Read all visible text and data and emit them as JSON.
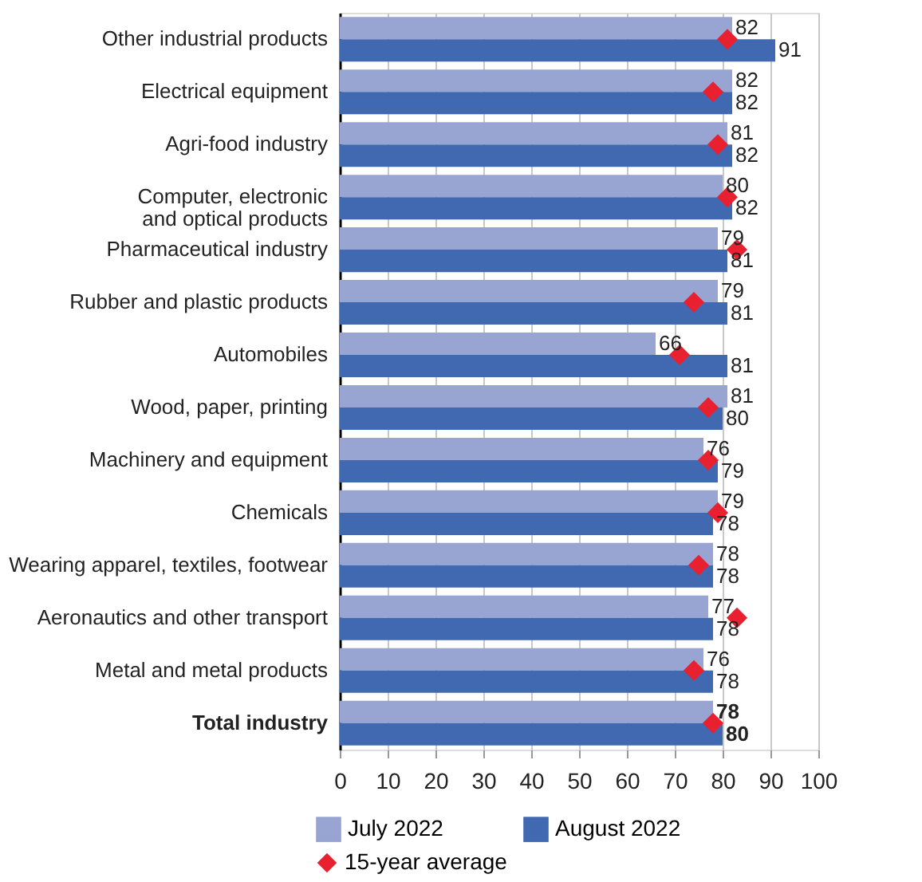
{
  "chart_data": {
    "type": "bar",
    "orientation": "horizontal",
    "categories": [
      "Other industrial products",
      "Electrical equipment",
      "Agri-food industry",
      "Computer, electronic and optical products",
      "Pharmaceutical industry",
      "Rubber and plastic products",
      "Automobiles",
      "Wood, paper, printing",
      "Machinery and equipment",
      "Chemicals",
      "Wearing apparel, textiles, footwear",
      "Aeronautics and other transport",
      "Metal and metal products",
      "Total industry"
    ],
    "series": [
      {
        "name": "July 2022",
        "color": "#98a4d2",
        "values": [
          82,
          82,
          81,
          80,
          79,
          79,
          66,
          81,
          76,
          79,
          78,
          77,
          76,
          78
        ],
        "value_labels": [
          "82",
          "82",
          "81",
          "80",
          "79",
          "79",
          "66",
          "81",
          "76",
          "79",
          "78",
          "77",
          "76",
          "78"
        ]
      },
      {
        "name": "August 2022",
        "color": "#4169b2",
        "values": [
          91,
          82,
          82,
          82,
          81,
          81,
          81,
          80,
          79,
          78,
          78,
          78,
          78,
          80
        ],
        "value_labels": [
          "91",
          "82",
          "82",
          "82",
          "81",
          "81",
          "81",
          "80",
          "79",
          "78",
          "78",
          "78",
          "78",
          "80"
        ]
      },
      {
        "name": "15-year average",
        "type": "scatter",
        "marker": "diamond",
        "color": "#e8202f",
        "values": [
          81,
          78,
          79,
          81,
          83,
          74,
          71,
          77,
          77,
          79,
          75,
          83,
          74,
          78
        ]
      }
    ],
    "xlim": [
      0,
      100
    ],
    "xticks": [
      0,
      10,
      20,
      30,
      40,
      50,
      60,
      70,
      80,
      90,
      100
    ],
    "grid": "x",
    "legend": "bottom"
  }
}
